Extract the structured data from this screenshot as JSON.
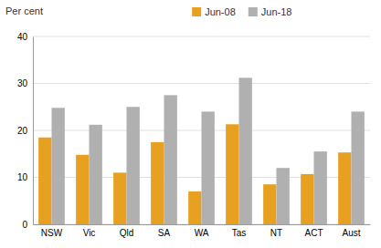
{
  "chart_data": {
    "type": "bar",
    "categories": [
      "NSW",
      "Vic",
      "Qld",
      "SA",
      "WA",
      "Tas",
      "NT",
      "ACT",
      "Aust"
    ],
    "series": [
      {
        "name": "Jun-08",
        "color": "#E8A020",
        "values": [
          18.5,
          14.8,
          11.0,
          17.5,
          7.0,
          21.3,
          8.5,
          10.7,
          15.3
        ]
      },
      {
        "name": "Jun-18",
        "color": "#B0B0B0",
        "values": [
          24.8,
          21.2,
          25.0,
          27.5,
          24.0,
          31.2,
          12.0,
          15.5,
          24.0
        ]
      }
    ],
    "ylabel": "Per cent",
    "ylim": [
      0,
      40
    ],
    "yticks": [
      0,
      10,
      20,
      30,
      40
    ],
    "grid": true,
    "legend": "top"
  }
}
